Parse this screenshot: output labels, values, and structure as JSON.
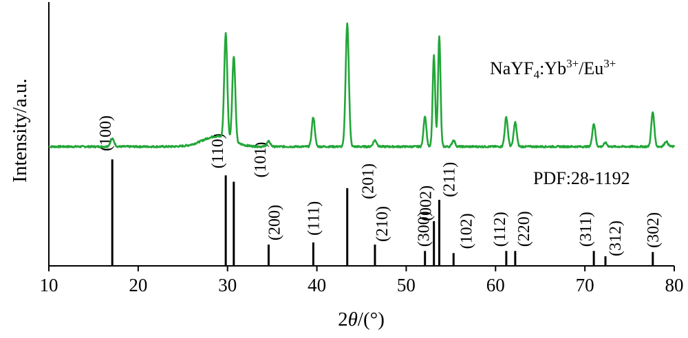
{
  "chart_data": {
    "type": "line",
    "xlabel_prefix": "2",
    "xlabel_theta": "θ",
    "xlabel_suffix": "/(°)",
    "ylabel": "Intensity/a.u.",
    "xlim": [
      10,
      80
    ],
    "xticks": [
      10,
      20,
      30,
      40,
      50,
      60,
      70,
      80
    ],
    "grid": false,
    "series": [
      {
        "color": "#22a638",
        "baseline": 3,
        "peaks": [
          {
            "x": 17.1,
            "h": 6,
            "w": 0.22
          },
          {
            "x": 29.8,
            "h": 82,
            "w": 0.17
          },
          {
            "x": 30.7,
            "h": 67,
            "w": 0.17
          },
          {
            "x": 34.6,
            "h": 4,
            "w": 0.2
          },
          {
            "x": 39.6,
            "h": 23,
            "w": 0.17
          },
          {
            "x": 43.4,
            "h": 96,
            "w": 0.18
          },
          {
            "x": 46.5,
            "h": 5,
            "w": 0.2
          },
          {
            "x": 52.1,
            "h": 24,
            "w": 0.16
          },
          {
            "x": 53.1,
            "h": 71,
            "w": 0.14
          },
          {
            "x": 53.7,
            "h": 86,
            "w": 0.14
          },
          {
            "x": 55.3,
            "h": 5,
            "w": 0.17
          },
          {
            "x": 61.2,
            "h": 23,
            "w": 0.17
          },
          {
            "x": 62.2,
            "h": 19,
            "w": 0.17
          },
          {
            "x": 71.0,
            "h": 18,
            "w": 0.17
          },
          {
            "x": 72.3,
            "h": 3,
            "w": 0.17
          },
          {
            "x": 77.6,
            "h": 27,
            "w": 0.17
          },
          {
            "x": 79.1,
            "h": 4,
            "w": 0.2
          }
        ],
        "hump": {
          "center": 28.8,
          "height": 8,
          "width": 1.6
        }
      }
    ],
    "reference": {
      "label": "PDF:28-1192",
      "lines": [
        {
          "x": 17.1,
          "rel": 100,
          "hkl": "(100)"
        },
        {
          "x": 29.8,
          "rel": 85,
          "hkl": "(110)"
        },
        {
          "x": 30.7,
          "rel": 79,
          "hkl": "(101)"
        },
        {
          "x": 34.6,
          "rel": 20,
          "hkl": "(200)"
        },
        {
          "x": 39.6,
          "rel": 22,
          "hkl": "(111)"
        },
        {
          "x": 43.4,
          "rel": 73,
          "hkl": "(201)"
        },
        {
          "x": 46.5,
          "rel": 20,
          "hkl": "(210)"
        },
        {
          "x": 52.1,
          "rel": 14,
          "hkl": "(300)"
        },
        {
          "x": 53.1,
          "rel": 42,
          "hkl": "(002)"
        },
        {
          "x": 53.7,
          "rel": 62,
          "hkl": "(211)"
        },
        {
          "x": 55.3,
          "rel": 12,
          "hkl": "(102)"
        },
        {
          "x": 61.2,
          "rel": 14,
          "hkl": "(112)"
        },
        {
          "x": 62.2,
          "rel": 14,
          "hkl": "(220)"
        },
        {
          "x": 71.0,
          "rel": 14,
          "hkl": "(311)"
        },
        {
          "x": 72.3,
          "rel": 9,
          "hkl": "(312)"
        },
        {
          "x": 77.6,
          "rel": 13,
          "hkl": "(302)"
        }
      ]
    },
    "sample_label": {
      "base": "NaYF",
      "sub": "4",
      "mid": ":Yb",
      "sup1": "3+",
      "slash": "/Eu",
      "sup2": "3+"
    }
  }
}
